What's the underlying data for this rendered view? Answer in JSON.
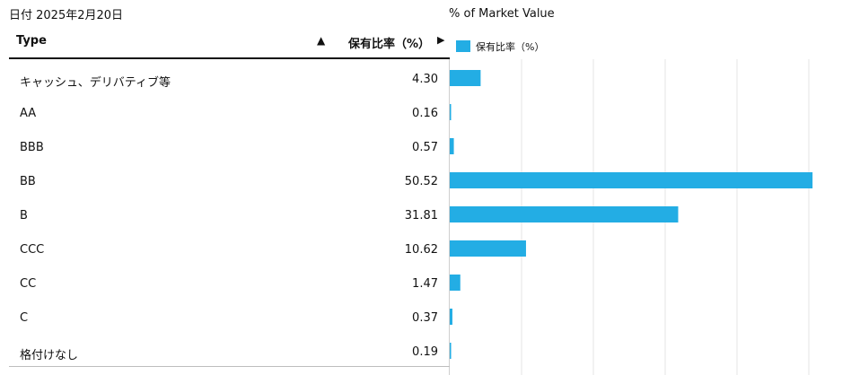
{
  "date_label": "日付 2025年2月20日",
  "table": {
    "col_type": "Type",
    "sort_icon": "▲",
    "col_value": "保有比率（%）",
    "scroll_icon": "▶"
  },
  "chart_data": {
    "type": "bar",
    "orientation": "horizontal",
    "title": "% of Market Value",
    "categories": [
      "キャッシュ、デリバティブ等",
      "AA",
      "BBB",
      "BB",
      "B",
      "CCC",
      "CC",
      "C",
      "格付けなし"
    ],
    "labels": [
      "4.30",
      "0.16",
      "0.57",
      "50.52",
      "31.81",
      "10.62",
      "1.47",
      "0.37",
      "0.19"
    ],
    "values": [
      4.3,
      0.16,
      0.57,
      50.52,
      31.81,
      10.62,
      1.47,
      0.37,
      0.19
    ],
    "series": [
      {
        "name": "保有比率（%）",
        "values": [
          4.3,
          0.16,
          0.57,
          50.52,
          31.81,
          10.62,
          1.47,
          0.37,
          0.19
        ]
      }
    ],
    "xlim": [
      0,
      50
    ],
    "grid": true,
    "legend": "top-left",
    "bar_color": "#23ade4"
  }
}
